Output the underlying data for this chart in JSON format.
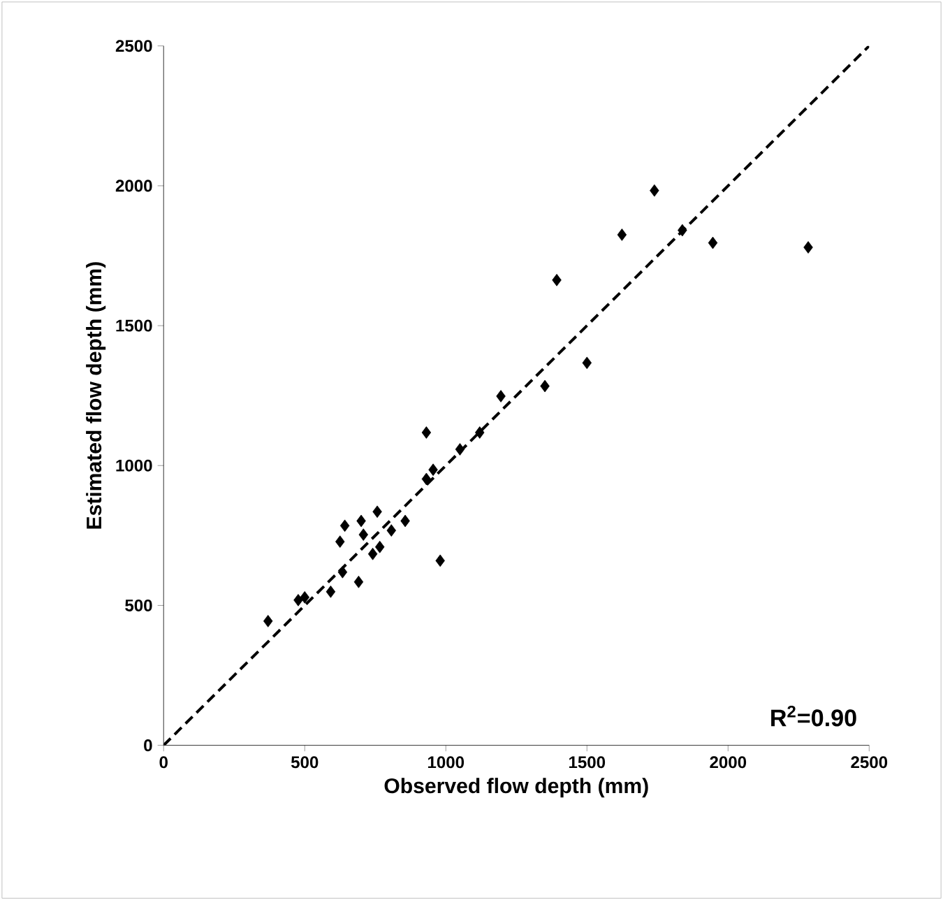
{
  "chart_data": {
    "type": "scatter",
    "xlabel": "Observed flow depth (mm)",
    "ylabel": "Estimated flow depth (mm)",
    "xlim": [
      0,
      2500
    ],
    "ylim": [
      0,
      2500
    ],
    "xticks": [
      0,
      500,
      1000,
      1500,
      2000,
      2500
    ],
    "yticks": [
      0,
      500,
      1000,
      1500,
      2000,
      2500
    ],
    "marker": "diamond",
    "series": [
      {
        "color": "#000000",
        "x": [
          370,
          477,
          500,
          592,
          691,
          634,
          741,
          766,
          642,
          625,
          700,
          757,
          856,
          807,
          708,
          980,
          931,
          955,
          1050,
          931,
          1120,
          1195,
          1351,
          1500,
          1393,
          1624,
          1739,
          1838,
          1946,
          2284
        ],
        "values": [
          444,
          519,
          529,
          549,
          584,
          619,
          684,
          709,
          785,
          728,
          802,
          835,
          802,
          768,
          753,
          660,
          952,
          985,
          1058,
          1118,
          1118,
          1248,
          1284,
          1367,
          1663,
          1825,
          1983,
          1841,
          1796,
          1780
        ]
      },
      {
        "type": "line",
        "color": "#000000",
        "line_style": "dashed",
        "marker": "none",
        "x": [
          0,
          2500
        ],
        "values": [
          0,
          2500
        ]
      }
    ],
    "annotations": [
      "R$^{2}$=0.90"
    ]
  }
}
